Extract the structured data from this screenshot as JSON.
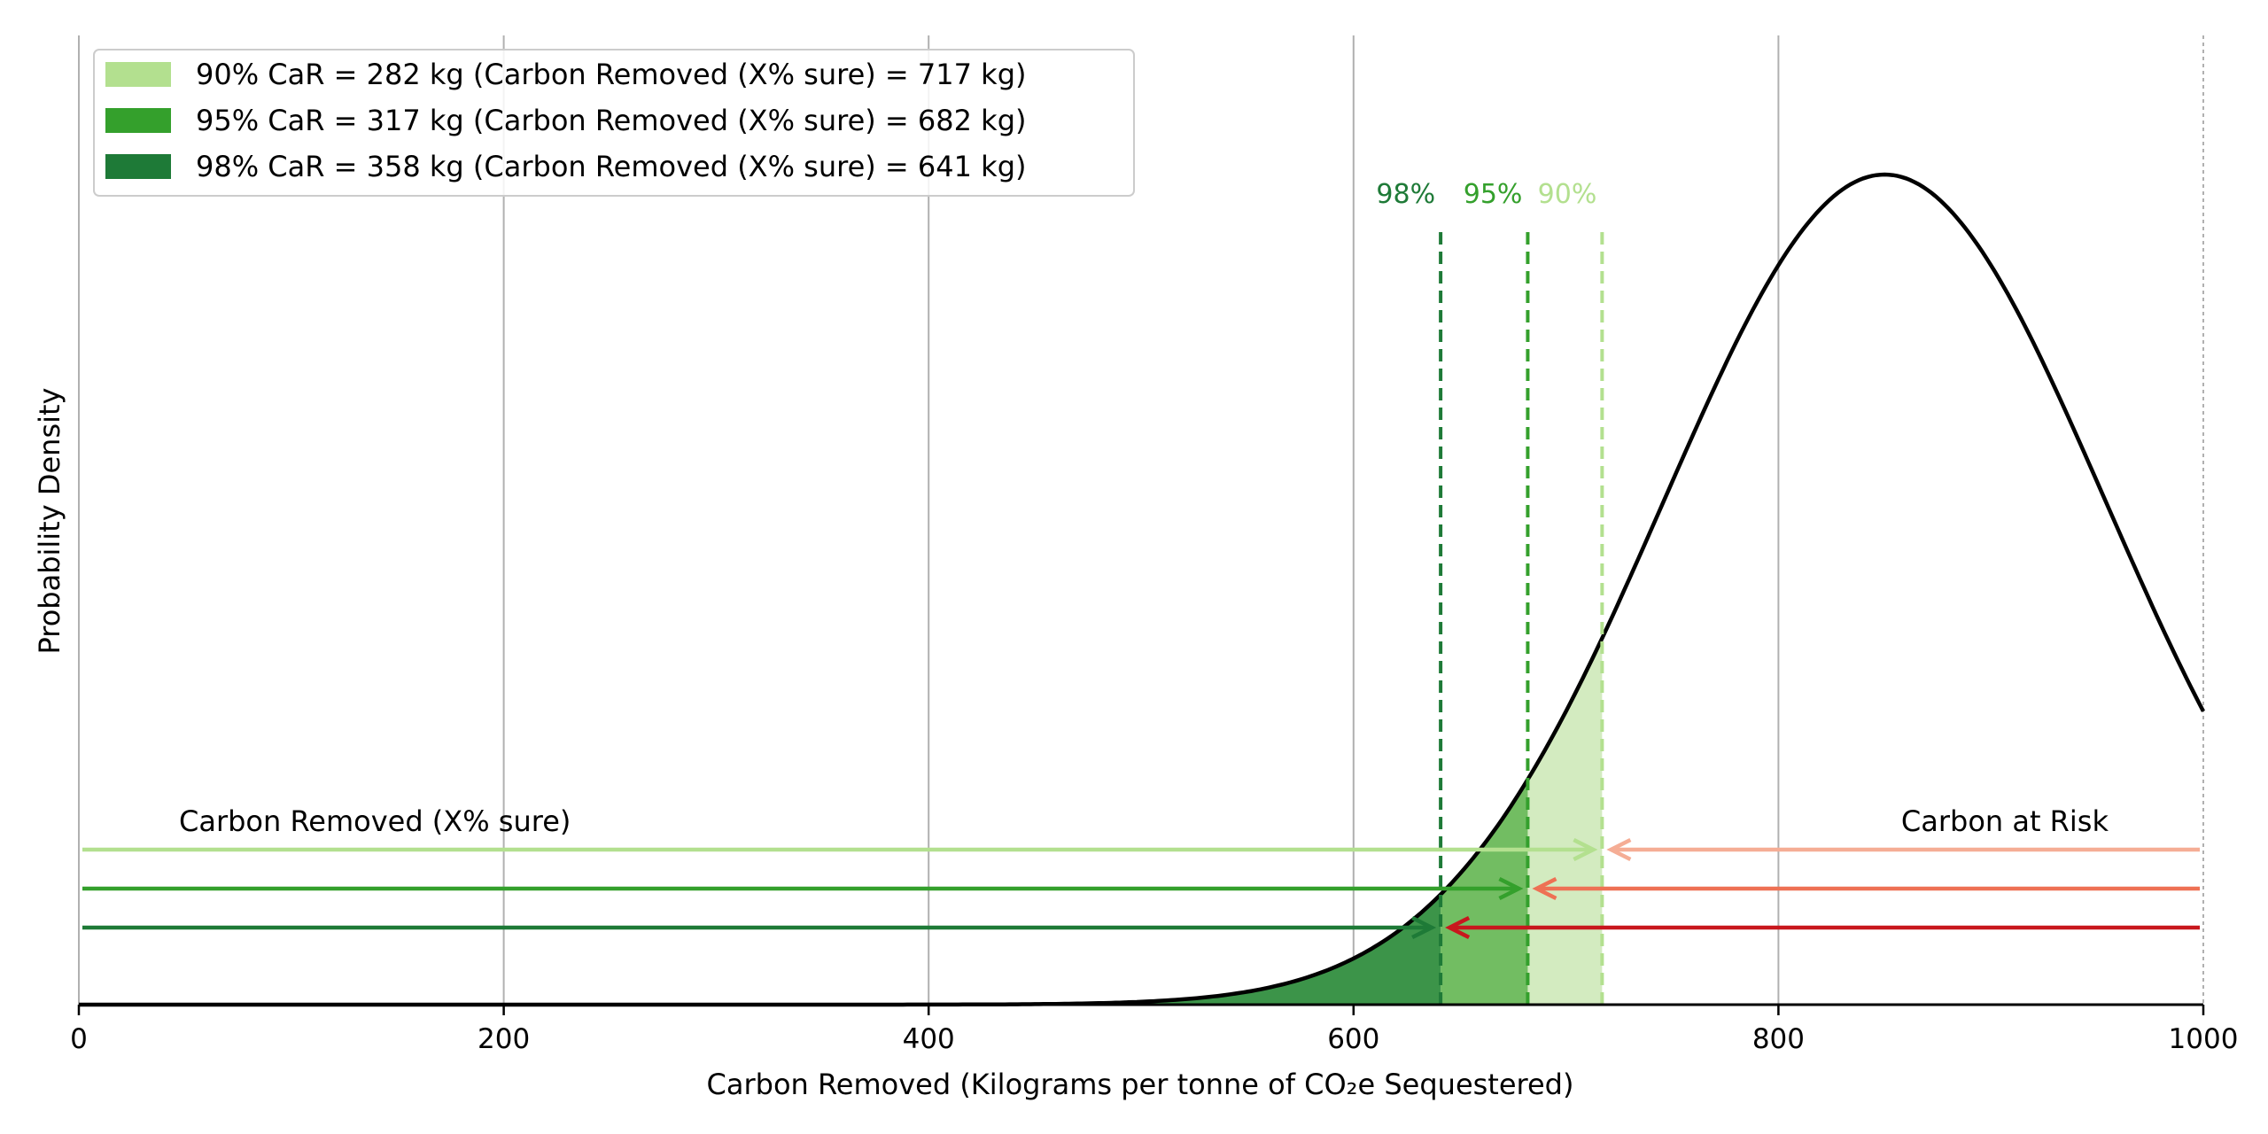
{
  "chart_data": {
    "type": "area",
    "xlabel": "Carbon Removed (Kilograms per tonne of CO₂e Sequestered)",
    "ylabel": "Probability Density",
    "xlim": [
      0,
      1000
    ],
    "x_ticks": [
      "0",
      "200",
      "400",
      "600",
      "800",
      "1000"
    ],
    "x_tick_values": [
      0,
      200,
      400,
      600,
      800,
      1000
    ],
    "grid": "vertical",
    "legend_position": "top-left",
    "distribution": {
      "kind": "normal",
      "mean": 850,
      "std": 104,
      "peak_density": 0.003836
    },
    "levels": [
      {
        "percent_label": "90%",
        "legend": "90% CaR = 282 kg (Carbon Removed (X% sure) = 717 kg)",
        "car_kg": 282,
        "carbon_removed_kg": 717,
        "color": "#b3e08f",
        "fill": "#d3ebc0",
        "risk_color": "#f5ad95"
      },
      {
        "percent_label": "95%",
        "legend": "95% CaR = 317 kg (Carbon Removed (X% sure) = 682 kg)",
        "car_kg": 317,
        "carbon_removed_kg": 682,
        "color": "#34a02c",
        "fill": "#72bd62",
        "risk_color": "#ee7154"
      },
      {
        "percent_label": "98%",
        "legend": "98% CaR = 358 kg (Carbon Removed (X% sure) = 641 kg)",
        "car_kg": 358,
        "carbon_removed_kg": 641,
        "color": "#1e7a37",
        "fill": "#3c9449",
        "risk_color": "#c8171d"
      }
    ],
    "annotations": {
      "carbon_removed": "Carbon Removed (X% sure)",
      "carbon_at_risk": "Carbon at Risk"
    },
    "curve_color": "#000000",
    "grid_color": "#b0b0b0"
  }
}
